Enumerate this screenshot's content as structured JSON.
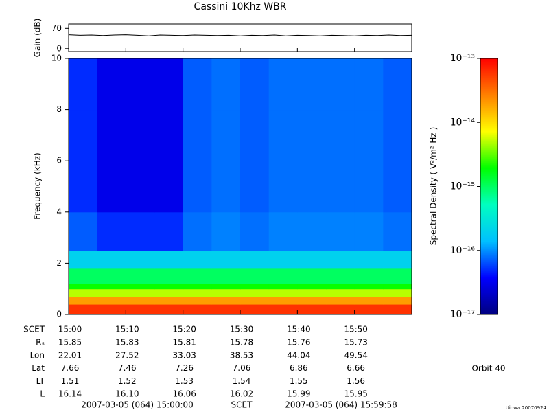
{
  "title": "Cassini 10Khz WBR",
  "chart_data": [
    {
      "type": "line",
      "ylabel": "Gain (dB)",
      "color": "#000000",
      "xlim": [
        0,
        60
      ],
      "ylim": [
        -10,
        85
      ],
      "yticks": [
        0,
        70
      ],
      "x": [
        0,
        2,
        4,
        6,
        8,
        10,
        12,
        14,
        16,
        18,
        20,
        22,
        24,
        26,
        28,
        30,
        32,
        34,
        36,
        38,
        40,
        42,
        44,
        46,
        48,
        50,
        52,
        54,
        56,
        58,
        60
      ],
      "values": [
        48,
        46,
        47,
        45,
        47,
        48,
        46,
        44,
        47,
        46,
        45,
        47,
        46,
        45,
        46,
        44,
        46,
        45,
        47,
        44,
        46,
        45,
        44,
        46,
        45,
        44,
        46,
        45,
        47,
        45,
        46
      ]
    },
    {
      "type": "heatmap",
      "ylabel": "Frequency (kHz)",
      "xlim": [
        0,
        60
      ],
      "ylim": [
        0,
        10
      ],
      "xticks": [
        {
          "value": 0,
          "label": "15:00"
        },
        {
          "value": 10,
          "label": "15:10"
        },
        {
          "value": 20,
          "label": "15:20"
        },
        {
          "value": 30,
          "label": "15:30"
        },
        {
          "value": 40,
          "label": "15:40"
        },
        {
          "value": 50,
          "label": "15:50"
        }
      ],
      "yticks": [
        0,
        2,
        4,
        6,
        8,
        10
      ],
      "x_edges": [
        0,
        5,
        10,
        15,
        20,
        25,
        30,
        35,
        40,
        45,
        50,
        55,
        60
      ],
      "y_edges": [
        0,
        0.4,
        0.7,
        1.0,
        1.2,
        1.8,
        2.5,
        4,
        6,
        8,
        10
      ],
      "values": [
        [
          6e-14,
          6e-14,
          6e-14,
          6e-14,
          6e-14,
          6e-14,
          6e-14,
          6e-14,
          6e-14,
          6e-14,
          6e-14,
          6e-14
        ],
        [
          2e-14,
          2e-14,
          2e-14,
          2e-14,
          2e-14,
          2e-14,
          2e-14,
          2e-14,
          2e-14,
          2e-14,
          2e-14,
          2e-14
        ],
        [
          5e-15,
          5e-15,
          5e-15,
          5e-15,
          5e-15,
          5e-15,
          5e-15,
          5e-15,
          5e-15,
          5e-15,
          5e-15,
          5e-15
        ],
        [
          2e-15,
          2e-15,
          2e-15,
          2e-15,
          2e-15,
          2e-15,
          2e-15,
          2e-15,
          2e-15,
          2e-15,
          2e-15,
          2e-15
        ],
        [
          1e-15,
          1e-15,
          1e-15,
          1e-15,
          1e-15,
          1e-15,
          1e-15,
          1e-15,
          1e-15,
          1e-15,
          1e-15,
          1e-15
        ],
        [
          2e-16,
          2e-16,
          2e-16,
          2e-16,
          2e-16,
          2e-16,
          2e-16,
          2e-16,
          2e-16,
          2e-16,
          2e-16,
          2e-16
        ],
        [
          7e-17,
          5e-17,
          5e-17,
          5e-17,
          8e-17,
          9e-17,
          8e-17,
          9e-17,
          9e-17,
          9e-17,
          9e-17,
          8e-17
        ],
        [
          5e-17,
          3e-17,
          3e-17,
          3e-17,
          7e-17,
          8e-17,
          7e-17,
          8e-17,
          8e-17,
          8e-17,
          8e-17,
          7e-17
        ],
        [
          5e-17,
          3e-17,
          3e-17,
          3e-17,
          7e-17,
          8e-17,
          7e-17,
          8e-17,
          8e-17,
          8e-17,
          8e-17,
          7e-17
        ],
        [
          5e-17,
          3e-17,
          3e-17,
          3e-17,
          7e-17,
          8e-17,
          7e-17,
          8e-17,
          8e-17,
          8e-17,
          8e-17,
          7e-17
        ]
      ],
      "log_color": true,
      "clim": [
        1e-17,
        1e-13
      ],
      "cticks": [
        {
          "value": 1e-13,
          "label": "10⁻¹³"
        },
        {
          "value": 1e-14,
          "label": "10⁻¹⁴"
        },
        {
          "value": 1e-15,
          "label": "10⁻¹⁵"
        },
        {
          "value": 1e-16,
          "label": "10⁻¹⁶"
        },
        {
          "value": 1e-17,
          "label": "10⁻¹⁷"
        }
      ],
      "colorbar_label": "Spectral Density ( V²/m² Hz )",
      "colormap": [
        "#000080",
        "#0000ff",
        "#00c0ff",
        "#00ffc0",
        "#00ff00",
        "#ffff00",
        "#ff8000",
        "#ff0000"
      ]
    }
  ],
  "ephemeris": {
    "scet_label": "SCET",
    "rows": [
      {
        "label": "Rₛ",
        "values": [
          "15.85",
          "15.83",
          "15.81",
          "15.78",
          "15.76",
          "15.73"
        ]
      },
      {
        "label": "Lon",
        "values": [
          "22.01",
          "27.52",
          "33.03",
          "38.53",
          "44.04",
          "49.54"
        ]
      },
      {
        "label": "Lat",
        "values": [
          "7.66",
          "7.46",
          "7.26",
          "7.06",
          "6.86",
          "6.66"
        ]
      },
      {
        "label": "LT",
        "values": [
          "1.51",
          "1.52",
          "1.53",
          "1.54",
          "1.55",
          "1.56"
        ]
      },
      {
        "label": "L",
        "values": [
          "16.14",
          "16.10",
          "16.06",
          "16.02",
          "15.99",
          "15.95"
        ]
      }
    ]
  },
  "footer": {
    "start": "2007-03-05 (064) 15:00:00",
    "scet": "SCET",
    "end": "2007-03-05 (064) 15:59:58",
    "orbit": "Orbit 40",
    "credit": "Uiowa 20070924"
  }
}
